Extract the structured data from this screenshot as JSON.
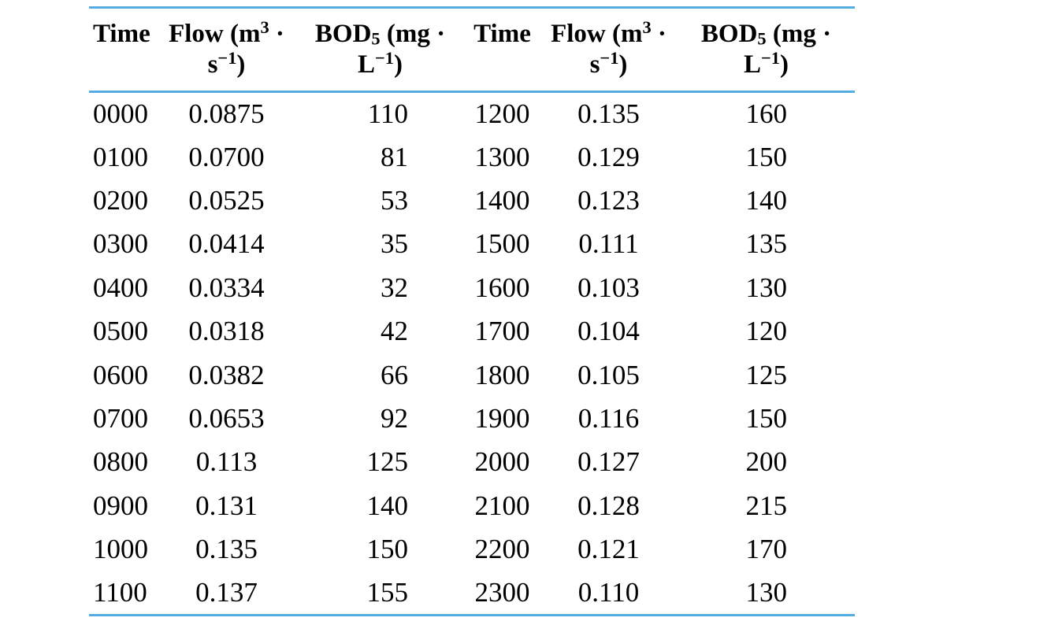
{
  "page": {
    "background": "#ffffff",
    "text_color": "#000000"
  },
  "table": {
    "rule_color": "#56ACE0",
    "columns": [
      {
        "key": "time_a",
        "align": "left",
        "data_align": "left",
        "segments": [
          {
            "t": "Time"
          }
        ]
      },
      {
        "key": "flow_a",
        "align": "center",
        "data_align": "center",
        "segments": [
          {
            "t": "Flow (m"
          },
          {
            "s": "sup",
            "t": "3"
          },
          {
            "t": " ·"
          },
          {
            "s": "br"
          },
          {
            "t": "s"
          },
          {
            "s": "sup",
            "t": "−1"
          },
          {
            "t": ")"
          }
        ]
      },
      {
        "key": "bod_a",
        "align": "center",
        "data_align": "right",
        "segments": [
          {
            "t": "BOD"
          },
          {
            "s": "sub",
            "t": "5"
          },
          {
            "t": " (mg ·"
          },
          {
            "s": "br"
          },
          {
            "t": "L"
          },
          {
            "s": "sup",
            "t": "−1"
          },
          {
            "t": ")"
          }
        ]
      },
      {
        "key": "time_b",
        "align": "center",
        "data_align": "center",
        "segments": [
          {
            "t": "Time"
          }
        ]
      },
      {
        "key": "flow_b",
        "align": "center",
        "data_align": "center",
        "segments": [
          {
            "t": "Flow (m"
          },
          {
            "s": "sup",
            "t": "3"
          },
          {
            "t": " ·"
          },
          {
            "s": "br"
          },
          {
            "t": "s"
          },
          {
            "s": "sup",
            "t": "−1"
          },
          {
            "t": ")"
          }
        ]
      },
      {
        "key": "bod_b",
        "align": "center",
        "data_align": "right",
        "segments": [
          {
            "t": "BOD"
          },
          {
            "s": "sub",
            "t": "5"
          },
          {
            "t": " (mg ·"
          },
          {
            "s": "br"
          },
          {
            "t": "L"
          },
          {
            "s": "sup",
            "t": "−1"
          },
          {
            "t": ")"
          }
        ]
      }
    ]
  },
  "chart_data": {
    "type": "table",
    "columns": [
      "Time",
      "Flow (m³·s⁻¹)",
      "BOD₅ (mg·L⁻¹)",
      "Time",
      "Flow (m³·s⁻¹)",
      "BOD₅ (mg·L⁻¹)"
    ],
    "rows": [
      [
        "0000",
        "0.0875",
        "110",
        "1200",
        "0.135",
        "160"
      ],
      [
        "0100",
        "0.0700",
        "81",
        "1300",
        "0.129",
        "150"
      ],
      [
        "0200",
        "0.0525",
        "53",
        "1400",
        "0.123",
        "140"
      ],
      [
        "0300",
        "0.0414",
        "35",
        "1500",
        "0.111",
        "135"
      ],
      [
        "0400",
        "0.0334",
        "32",
        "1600",
        "0.103",
        "130"
      ],
      [
        "0500",
        "0.0318",
        "42",
        "1700",
        "0.104",
        "120"
      ],
      [
        "0600",
        "0.0382",
        "66",
        "1800",
        "0.105",
        "125"
      ],
      [
        "0700",
        "0.0653",
        "92",
        "1900",
        "0.116",
        "150"
      ],
      [
        "0800",
        "0.113",
        "125",
        "2000",
        "0.127",
        "200"
      ],
      [
        "0900",
        "0.131",
        "140",
        "2100",
        "0.128",
        "215"
      ],
      [
        "1000",
        "0.135",
        "150",
        "2200",
        "0.121",
        "170"
      ],
      [
        "1100",
        "0.137",
        "155",
        "2300",
        "0.110",
        "130"
      ]
    ]
  }
}
